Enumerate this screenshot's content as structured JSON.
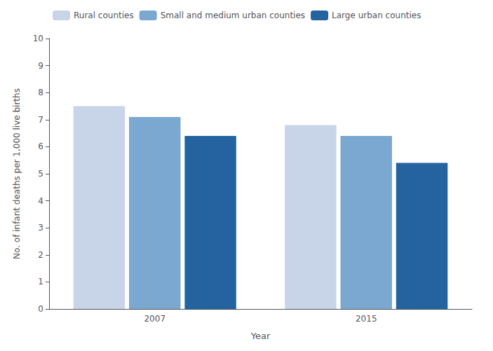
{
  "chart_data": {
    "type": "bar",
    "categories": [
      "2007",
      "2015"
    ],
    "series": [
      {
        "name": "Rural counties",
        "color": "#c8d4e8",
        "values": [
          7.5,
          6.8
        ]
      },
      {
        "name": "Small and medium urban counties",
        "color": "#7aa8d0",
        "values": [
          7.1,
          6.4
        ]
      },
      {
        "name": "Large urban counties",
        "color": "#2463a0",
        "values": [
          6.4,
          5.4
        ]
      }
    ],
    "xlabel": "Year",
    "ylabel": "No. of infant deaths per 1,000 live births",
    "ylim": [
      0,
      10
    ],
    "yticks": [
      0,
      1,
      2,
      3,
      4,
      5,
      6,
      7,
      8,
      9,
      10
    ],
    "grid": false,
    "legend": "upper left"
  }
}
